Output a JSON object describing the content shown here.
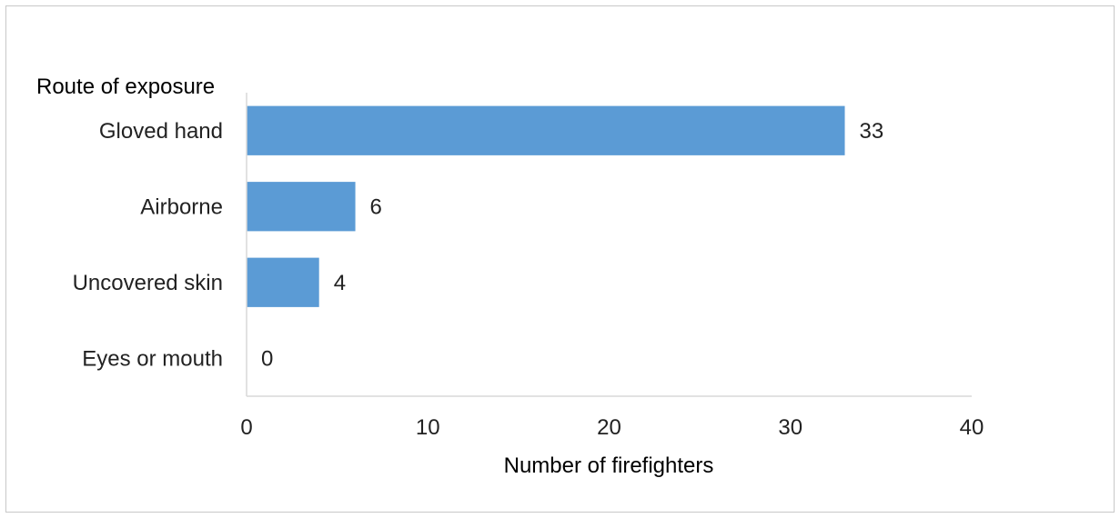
{
  "chart_data": {
    "type": "bar",
    "orientation": "horizontal",
    "categories": [
      "Gloved hand",
      "Airborne",
      "Uncovered skin",
      "Eyes or mouth"
    ],
    "values": [
      33,
      6,
      4,
      0
    ],
    "title": "",
    "xlabel": "Number of firefighters",
    "ylabel": "Route of exposure",
    "xlim": [
      0,
      40
    ],
    "xticks": [
      "0",
      "10",
      "20",
      "30",
      "40"
    ],
    "grid": false,
    "legend": "none",
    "bar_color": "#5b9bd5"
  }
}
